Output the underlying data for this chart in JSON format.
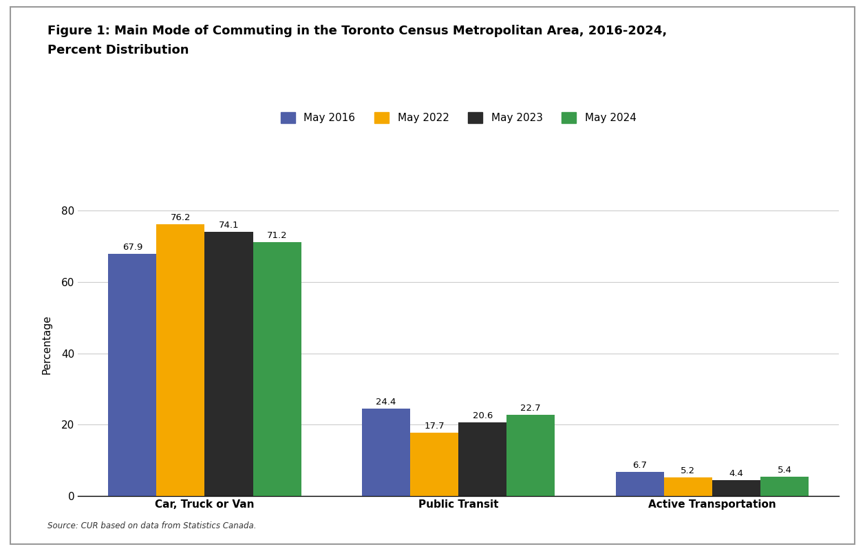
{
  "title_line1": "Figure 1: Main Mode of Commuting in the Toronto Census Metropolitan Area, 2016-2024,",
  "title_line2": "Percent Distribution",
  "ylabel": "Percentage",
  "categories": [
    "Car, Truck or Van",
    "Public Transit",
    "Active Transportation"
  ],
  "series": [
    {
      "label": "May 2016",
      "color": "#4F5FA8",
      "values": [
        67.9,
        24.4,
        6.7
      ]
    },
    {
      "label": "May 2022",
      "color": "#F5A800",
      "values": [
        76.2,
        17.7,
        5.2
      ]
    },
    {
      "label": "May 2023",
      "color": "#2B2B2B",
      "values": [
        74.1,
        20.6,
        4.4
      ]
    },
    {
      "label": "May 2024",
      "color": "#3A9B4B",
      "values": [
        71.2,
        22.7,
        5.4
      ]
    }
  ],
  "ylim": [
    0,
    85
  ],
  "yticks": [
    0,
    20,
    40,
    60,
    80
  ],
  "source": "Source: CUR based on data from Statistics Canada.",
  "background_color": "#FFFFFF",
  "grid_color": "#CCCCCC",
  "bar_width": 0.19,
  "label_fontsize": 9.5,
  "title_fontsize": 13,
  "axis_label_fontsize": 11,
  "tick_fontsize": 11,
  "legend_fontsize": 11,
  "source_fontsize": 8.5
}
